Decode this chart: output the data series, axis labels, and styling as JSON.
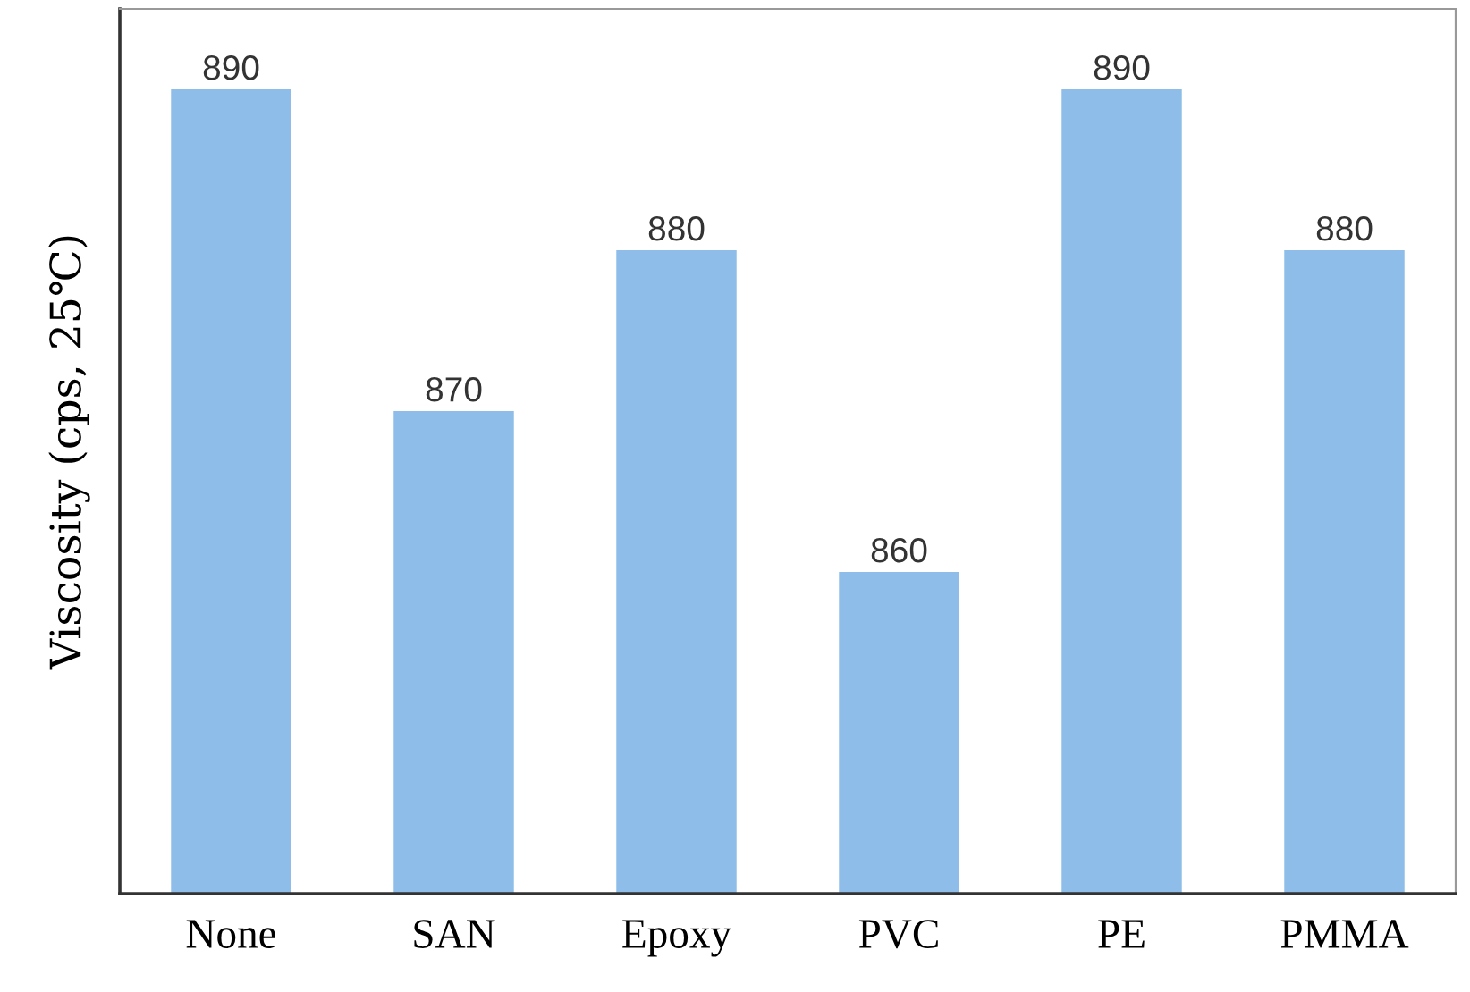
{
  "chart_data": {
    "type": "bar",
    "ylabel": "Viscosity (cps, 25℃)",
    "categories": [
      "None",
      "SAN",
      "Epoxy",
      "PVC",
      "PE",
      "PMMA"
    ],
    "values": [
      890,
      870,
      880,
      860,
      890,
      880
    ],
    "color": "#8dbde8",
    "ylim": [
      840,
      895
    ],
    "data_labels": true,
    "tick_labels": "x",
    "grid": false
  }
}
